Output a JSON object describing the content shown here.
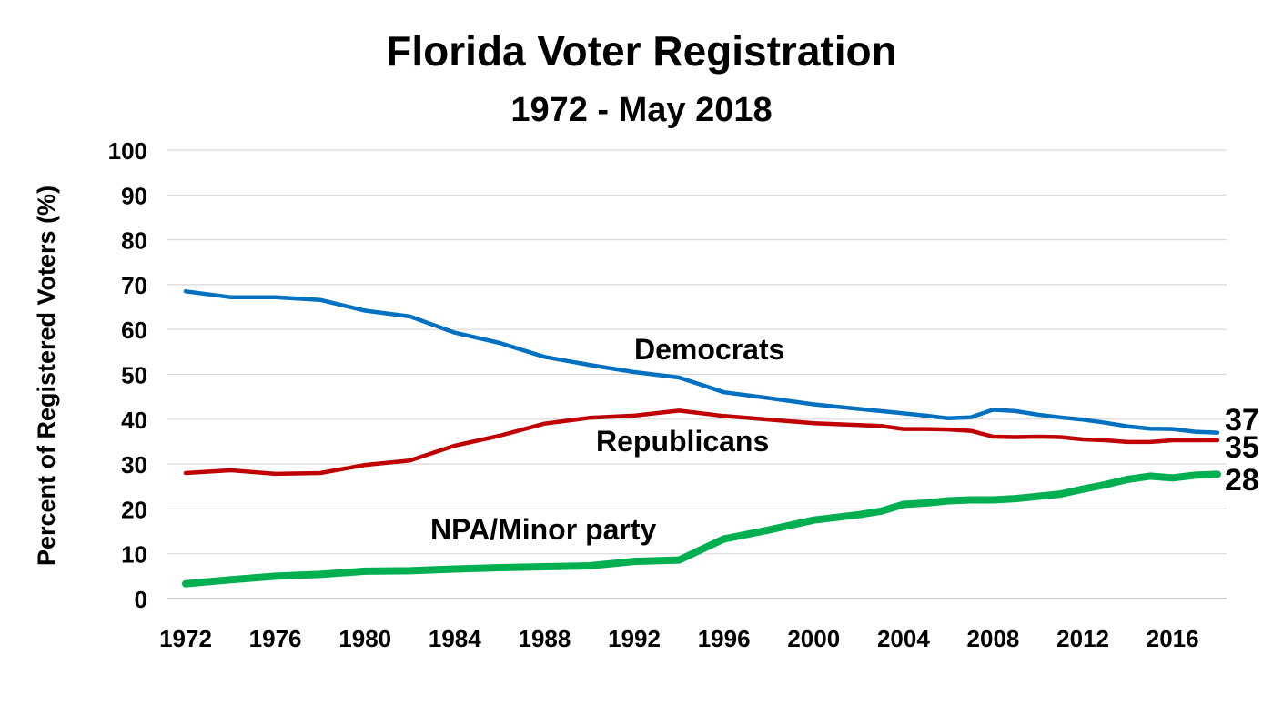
{
  "chart_data": {
    "type": "line",
    "title": "Florida Voter Registration",
    "subtitle": "1972 - May 2018",
    "xlabel": "",
    "ylabel": "Percent of Registered Voters (%)",
    "xlim": [
      1972,
      2018
    ],
    "ylim": [
      0,
      100
    ],
    "x_ticks": [
      1972,
      1976,
      1980,
      1984,
      1988,
      1992,
      1996,
      2000,
      2004,
      2008,
      2012,
      2016
    ],
    "x_tick_labels": [
      "1972",
      "1976",
      "1980",
      "1984",
      "1988",
      "1992",
      "1996",
      "2000",
      "2004",
      "2008",
      "2012",
      "2016"
    ],
    "y_ticks": [
      0,
      10,
      20,
      30,
      40,
      50,
      60,
      70,
      80,
      90,
      100
    ],
    "y_tick_labels": [
      "0",
      "10",
      "20",
      "30",
      "40",
      "50",
      "60",
      "70",
      "80",
      "90",
      "100"
    ],
    "grid": "horizontal",
    "series": [
      {
        "name": "Democrats",
        "color": "#0070C0",
        "end_label": "37",
        "points": [
          [
            1972,
            68.5
          ],
          [
            1974,
            67.2
          ],
          [
            1976,
            67.2
          ],
          [
            1978,
            66.6
          ],
          [
            1980,
            64.2
          ],
          [
            1982,
            62.9
          ],
          [
            1984,
            59.3
          ],
          [
            1986,
            57.0
          ],
          [
            1988,
            53.9
          ],
          [
            1990,
            52.1
          ],
          [
            1992,
            50.5
          ],
          [
            1994,
            49.3
          ],
          [
            1996,
            46.0
          ],
          [
            1998,
            44.7
          ],
          [
            2000,
            43.3
          ],
          [
            2002,
            42.3
          ],
          [
            2003,
            41.8
          ],
          [
            2004,
            41.3
          ],
          [
            2005,
            40.8
          ],
          [
            2006,
            40.2
          ],
          [
            2007,
            40.4
          ],
          [
            2008,
            42.1
          ],
          [
            2009,
            41.8
          ],
          [
            2010,
            41.0
          ],
          [
            2011,
            40.4
          ],
          [
            2012,
            39.9
          ],
          [
            2013,
            39.2
          ],
          [
            2014,
            38.4
          ],
          [
            2015,
            37.9
          ],
          [
            2016,
            37.8
          ],
          [
            2017,
            37.2
          ],
          [
            2018,
            37.0
          ]
        ]
      },
      {
        "name": "Republicans",
        "color": "#C00000",
        "end_label": "35",
        "points": [
          [
            1972,
            28.0
          ],
          [
            1974,
            28.6
          ],
          [
            1976,
            27.8
          ],
          [
            1978,
            28.0
          ],
          [
            1980,
            29.8
          ],
          [
            1982,
            30.8
          ],
          [
            1984,
            34.1
          ],
          [
            1986,
            36.3
          ],
          [
            1988,
            39.0
          ],
          [
            1990,
            40.3
          ],
          [
            1992,
            40.8
          ],
          [
            1994,
            41.9
          ],
          [
            1996,
            40.7
          ],
          [
            1998,
            39.9
          ],
          [
            2000,
            39.1
          ],
          [
            2002,
            38.7
          ],
          [
            2003,
            38.5
          ],
          [
            2004,
            37.8
          ],
          [
            2005,
            37.8
          ],
          [
            2006,
            37.7
          ],
          [
            2007,
            37.4
          ],
          [
            2008,
            36.1
          ],
          [
            2009,
            36.0
          ],
          [
            2010,
            36.1
          ],
          [
            2011,
            36.0
          ],
          [
            2012,
            35.5
          ],
          [
            2013,
            35.3
          ],
          [
            2014,
            34.9
          ],
          [
            2015,
            34.9
          ],
          [
            2016,
            35.3
          ],
          [
            2017,
            35.3
          ],
          [
            2018,
            35.3
          ]
        ]
      },
      {
        "name": "NPA/Minor party",
        "color": "#00B050",
        "end_label": "28",
        "points": [
          [
            1972,
            3.3
          ],
          [
            1974,
            4.2
          ],
          [
            1976,
            5.0
          ],
          [
            1978,
            5.4
          ],
          [
            1980,
            6.1
          ],
          [
            1982,
            6.2
          ],
          [
            1984,
            6.6
          ],
          [
            1986,
            6.9
          ],
          [
            1988,
            7.1
          ],
          [
            1990,
            7.3
          ],
          [
            1992,
            8.3
          ],
          [
            1994,
            8.6
          ],
          [
            1996,
            13.3
          ],
          [
            1998,
            15.3
          ],
          [
            2000,
            17.5
          ],
          [
            2002,
            18.7
          ],
          [
            2003,
            19.5
          ],
          [
            2004,
            21.0
          ],
          [
            2005,
            21.3
          ],
          [
            2006,
            21.8
          ],
          [
            2007,
            22.0
          ],
          [
            2008,
            22.0
          ],
          [
            2009,
            22.3
          ],
          [
            2010,
            22.8
          ],
          [
            2011,
            23.3
          ],
          [
            2012,
            24.4
          ],
          [
            2013,
            25.4
          ],
          [
            2014,
            26.6
          ],
          [
            2015,
            27.3
          ],
          [
            2016,
            26.9
          ],
          [
            2017,
            27.5
          ],
          [
            2018,
            27.7
          ]
        ]
      }
    ]
  }
}
